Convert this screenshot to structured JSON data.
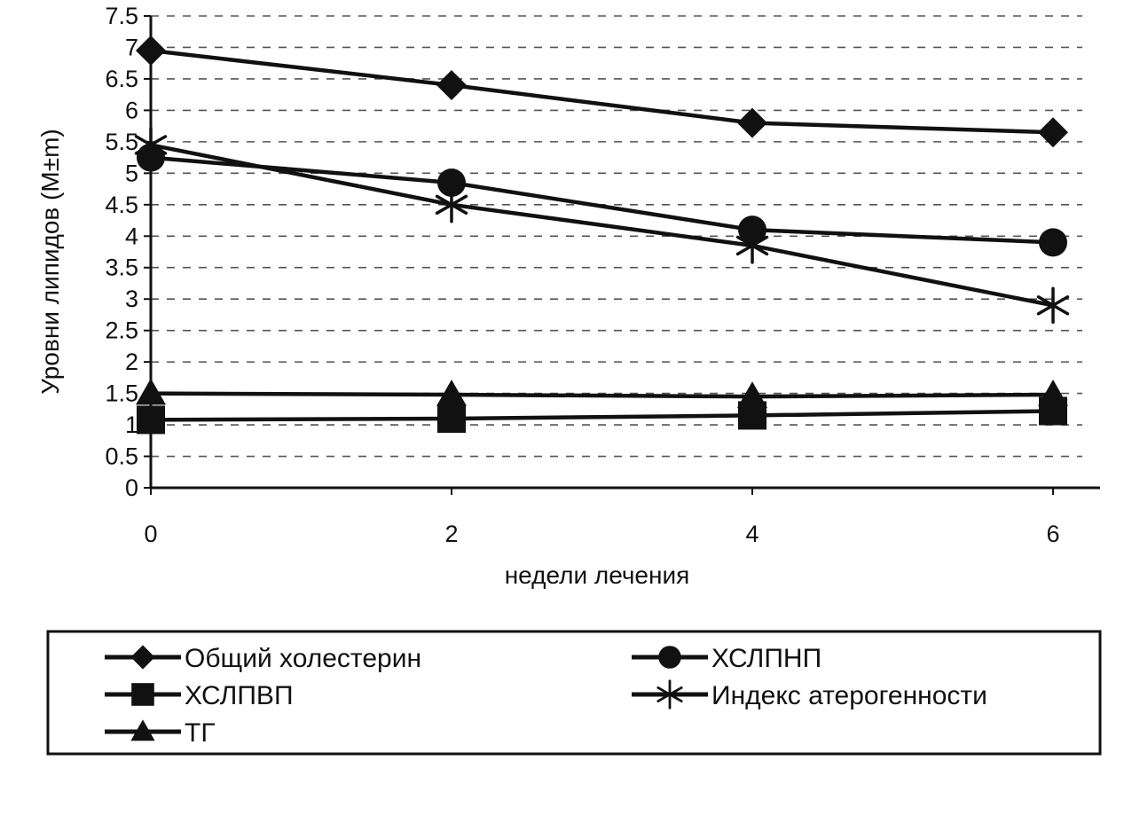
{
  "chart_data": {
    "type": "line",
    "title": "",
    "xlabel": "недели лечения",
    "ylabel": "Уровни липидов (M±m)",
    "x": [
      0,
      2,
      4,
      6
    ],
    "x_tick_labels": [
      "0",
      "2",
      "4",
      "6"
    ],
    "y_tick_labels": [
      "0",
      "0.5",
      "1",
      "1.5",
      "2",
      "2.5",
      "3",
      "3.5",
      "4",
      "4.5",
      "5",
      "5.5",
      "6",
      "6.5",
      "7",
      "7.5"
    ],
    "xlim": [
      0,
      6
    ],
    "ylim": [
      0,
      7.5
    ],
    "grid": "horizontal dashed",
    "legend_position": "bottom",
    "series": [
      {
        "name": "Общий холестерин",
        "marker": "diamond",
        "values": [
          6.95,
          6.4,
          5.8,
          5.65
        ]
      },
      {
        "name": "ХСЛПНП",
        "marker": "circle",
        "values": [
          5.25,
          4.85,
          4.1,
          3.9
        ]
      },
      {
        "name": "ХСЛПВП",
        "marker": "square",
        "values": [
          1.08,
          1.1,
          1.15,
          1.22
        ]
      },
      {
        "name": "Индекс атерогенности",
        "marker": "asterisk",
        "values": [
          5.45,
          4.5,
          3.85,
          2.9
        ]
      },
      {
        "name": "ТГ",
        "marker": "triangle",
        "values": [
          1.5,
          1.48,
          1.45,
          1.48
        ]
      }
    ],
    "colors": {
      "line": "#111111",
      "grid": "#555555",
      "background": "#ffffff"
    }
  }
}
